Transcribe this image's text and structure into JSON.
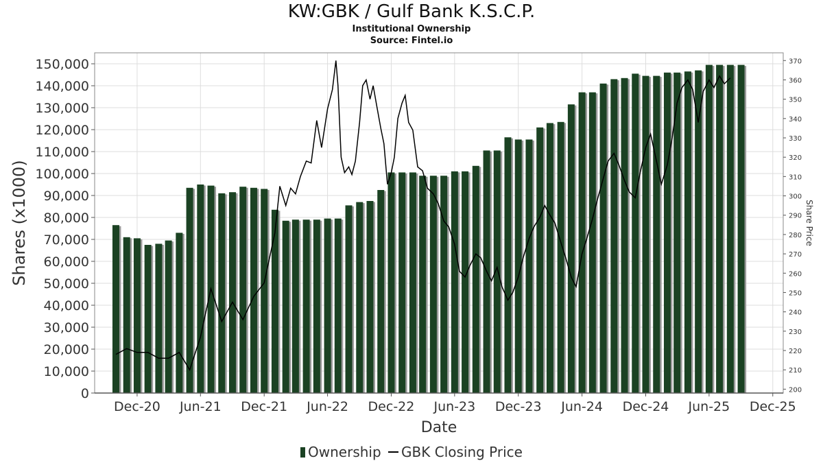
{
  "header": {
    "title": "KW:GBK / Gulf Bank K.S.C.P.",
    "subtitle": "Institutional Ownership",
    "source": "Source: Fintel.io"
  },
  "legend": {
    "ownership": "Ownership",
    "price": "GBK Closing Price"
  },
  "colors": {
    "bar": "#1b4223",
    "bar_shadow": "#9a9a9a",
    "line": "#000000",
    "grid": "#dddddd"
  },
  "chart_data": {
    "type": "bar",
    "xlabel": "Date",
    "ylabel": "Shares (x1000)",
    "y2label": "Share Price",
    "ylim": [
      0,
      155000
    ],
    "y2lim": [
      198,
      374
    ],
    "xlim": [
      "2020-08-01",
      "2025-12-31"
    ],
    "grid": true,
    "legend_position": "bottom",
    "y_ticks": [
      "0",
      "10,000",
      "20,000",
      "30,000",
      "40,000",
      "50,000",
      "60,000",
      "70,000",
      "80,000",
      "90,000",
      "100,000",
      "110,000",
      "120,000",
      "130,000",
      "140,000",
      "150,000"
    ],
    "y2_ticks": [
      "200",
      "210",
      "220",
      "230",
      "240",
      "250",
      "260",
      "270",
      "280",
      "290",
      "300",
      "310",
      "320",
      "330",
      "340",
      "350",
      "360",
      "370"
    ],
    "x_ticks": [
      {
        "date": "2020-12-01",
        "label": "Dec-20"
      },
      {
        "date": "2021-06-01",
        "label": "Jun-21"
      },
      {
        "date": "2021-12-01",
        "label": "Dec-21"
      },
      {
        "date": "2022-06-01",
        "label": "Jun-22"
      },
      {
        "date": "2022-12-01",
        "label": "Dec-22"
      },
      {
        "date": "2023-06-01",
        "label": "Jun-23"
      },
      {
        "date": "2023-12-01",
        "label": "Dec-23"
      },
      {
        "date": "2024-06-01",
        "label": "Jun-24"
      },
      {
        "date": "2024-12-01",
        "label": "Dec-24"
      },
      {
        "date": "2025-06-01",
        "label": "Jun-25"
      },
      {
        "date": "2025-12-01",
        "label": "Dec-25"
      }
    ],
    "series": [
      {
        "name": "Ownership",
        "type": "bar",
        "dates": [
          "2020-10-01",
          "2020-11-01",
          "2020-12-01",
          "2021-01-01",
          "2021-02-01",
          "2021-03-01",
          "2021-04-01",
          "2021-05-01",
          "2021-06-01",
          "2021-07-01",
          "2021-08-01",
          "2021-09-01",
          "2021-10-01",
          "2021-11-01",
          "2021-12-01",
          "2022-01-01",
          "2022-02-01",
          "2022-03-01",
          "2022-04-01",
          "2022-05-01",
          "2022-06-01",
          "2022-07-01",
          "2022-08-01",
          "2022-09-01",
          "2022-10-01",
          "2022-11-01",
          "2022-12-01",
          "2023-01-01",
          "2023-02-01",
          "2023-03-01",
          "2023-04-01",
          "2023-05-01",
          "2023-06-01",
          "2023-07-01",
          "2023-08-01",
          "2023-09-01",
          "2023-10-01",
          "2023-11-01",
          "2023-12-01",
          "2024-01-01",
          "2024-02-01",
          "2024-03-01",
          "2024-04-01",
          "2024-05-01",
          "2024-06-01",
          "2024-07-01",
          "2024-08-01",
          "2024-09-01",
          "2024-10-01",
          "2024-11-01",
          "2024-12-01",
          "2025-01-01",
          "2025-02-01",
          "2025-03-01",
          "2025-04-01",
          "2025-05-01",
          "2025-06-01",
          "2025-07-01",
          "2025-08-01",
          "2025-09-01"
        ],
        "values": [
          76500,
          71000,
          70500,
          67500,
          68000,
          69500,
          73000,
          93500,
          95000,
          94500,
          91000,
          91500,
          94000,
          93500,
          93000,
          83500,
          78500,
          79000,
          79000,
          79000,
          79500,
          79500,
          85500,
          87000,
          87500,
          92500,
          100500,
          100500,
          100500,
          99000,
          99000,
          99000,
          101000,
          101000,
          103500,
          110500,
          110500,
          116500,
          115500,
          115500,
          121000,
          123000,
          123500,
          131500,
          137000,
          137000,
          141000,
          143000,
          143500,
          145500,
          144500,
          144500,
          146000,
          146000,
          146500,
          147000,
          149500,
          149500,
          149500,
          149500
        ]
      },
      {
        "name": "GBK Closing Price",
        "type": "line",
        "points": [
          [
            "2020-10-01",
            218
          ],
          [
            "2020-11-01",
            221
          ],
          [
            "2020-12-01",
            219
          ],
          [
            "2021-01-01",
            219
          ],
          [
            "2021-02-01",
            216
          ],
          [
            "2021-03-01",
            216
          ],
          [
            "2021-04-01",
            219
          ],
          [
            "2021-05-01",
            210
          ],
          [
            "2021-06-01",
            227
          ],
          [
            "2021-07-01",
            252
          ],
          [
            "2021-08-01",
            235
          ],
          [
            "2021-09-01",
            245
          ],
          [
            "2021-10-01",
            236
          ],
          [
            "2021-11-01",
            248
          ],
          [
            "2021-12-01",
            255
          ],
          [
            "2022-01-01",
            281
          ],
          [
            "2022-01-15",
            305
          ],
          [
            "2022-02-01",
            295
          ],
          [
            "2022-02-15",
            304
          ],
          [
            "2022-03-01",
            301
          ],
          [
            "2022-03-15",
            310
          ],
          [
            "2022-04-01",
            318
          ],
          [
            "2022-04-15",
            317
          ],
          [
            "2022-05-01",
            339
          ],
          [
            "2022-05-15",
            325
          ],
          [
            "2022-06-01",
            345
          ],
          [
            "2022-06-15",
            355
          ],
          [
            "2022-06-25",
            370
          ],
          [
            "2022-07-01",
            357
          ],
          [
            "2022-07-10",
            320
          ],
          [
            "2022-07-20",
            312
          ],
          [
            "2022-08-01",
            315
          ],
          [
            "2022-08-10",
            311
          ],
          [
            "2022-08-20",
            318
          ],
          [
            "2022-09-01",
            338
          ],
          [
            "2022-09-10",
            357
          ],
          [
            "2022-09-20",
            360
          ],
          [
            "2022-10-01",
            350
          ],
          [
            "2022-10-10",
            357
          ],
          [
            "2022-10-20",
            347
          ],
          [
            "2022-11-01",
            335
          ],
          [
            "2022-11-10",
            327
          ],
          [
            "2022-11-20",
            306
          ],
          [
            "2022-12-01",
            312
          ],
          [
            "2022-12-10",
            320
          ],
          [
            "2022-12-20",
            340
          ],
          [
            "2023-01-01",
            348
          ],
          [
            "2023-01-10",
            352
          ],
          [
            "2023-01-20",
            338
          ],
          [
            "2023-02-01",
            334
          ],
          [
            "2023-02-15",
            315
          ],
          [
            "2023-03-01",
            313
          ],
          [
            "2023-03-15",
            304
          ],
          [
            "2023-04-01",
            301
          ],
          [
            "2023-04-15",
            296
          ],
          [
            "2023-05-01",
            287
          ],
          [
            "2023-05-15",
            284
          ],
          [
            "2023-06-01",
            275
          ],
          [
            "2023-06-15",
            261
          ],
          [
            "2023-07-01",
            258
          ],
          [
            "2023-07-15",
            264
          ],
          [
            "2023-08-01",
            270
          ],
          [
            "2023-08-15",
            268
          ],
          [
            "2023-09-01",
            261
          ],
          [
            "2023-09-15",
            256
          ],
          [
            "2023-10-01",
            263
          ],
          [
            "2023-10-15",
            253
          ],
          [
            "2023-11-01",
            246
          ],
          [
            "2023-11-15",
            250
          ],
          [
            "2023-12-01",
            258
          ],
          [
            "2023-12-15",
            268
          ],
          [
            "2024-01-01",
            278
          ],
          [
            "2024-01-15",
            284
          ],
          [
            "2024-02-01",
            289
          ],
          [
            "2024-02-15",
            295
          ],
          [
            "2024-03-01",
            290
          ],
          [
            "2024-03-15",
            286
          ],
          [
            "2024-04-01",
            276
          ],
          [
            "2024-04-15",
            268
          ],
          [
            "2024-05-01",
            258
          ],
          [
            "2024-05-15",
            253
          ],
          [
            "2024-06-01",
            270
          ],
          [
            "2024-06-15",
            278
          ],
          [
            "2024-07-01",
            288
          ],
          [
            "2024-07-15",
            298
          ],
          [
            "2024-08-01",
            309
          ],
          [
            "2024-08-15",
            318
          ],
          [
            "2024-09-01",
            322
          ],
          [
            "2024-09-15",
            316
          ],
          [
            "2024-10-01",
            308
          ],
          [
            "2024-10-15",
            302
          ],
          [
            "2024-11-01",
            299
          ],
          [
            "2024-11-15",
            312
          ],
          [
            "2024-12-01",
            325
          ],
          [
            "2024-12-15",
            332
          ],
          [
            "2025-01-01",
            318
          ],
          [
            "2025-01-15",
            306
          ],
          [
            "2025-02-01",
            316
          ],
          [
            "2025-02-15",
            330
          ],
          [
            "2025-03-01",
            348
          ],
          [
            "2025-03-15",
            356
          ],
          [
            "2025-04-01",
            360
          ],
          [
            "2025-04-15",
            355
          ],
          [
            "2025-05-01",
            338
          ],
          [
            "2025-05-15",
            354
          ],
          [
            "2025-06-01",
            360
          ],
          [
            "2025-06-15",
            356
          ],
          [
            "2025-07-01",
            362
          ],
          [
            "2025-07-15",
            358
          ],
          [
            "2025-08-01",
            361
          ]
        ]
      }
    ]
  }
}
